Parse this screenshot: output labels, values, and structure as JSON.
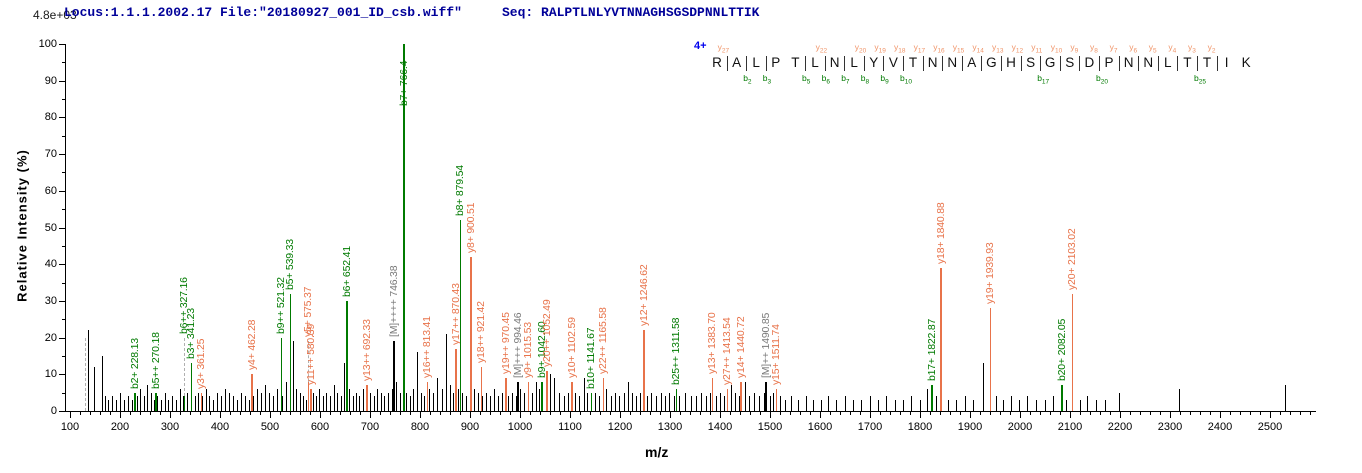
{
  "header": {
    "scale_label": "4.8e+03",
    "locus_text": "Locus:1.1.1.2002.17 File:\"20180927_001_ID_csb.wiff\"",
    "seq_label": "Seq:",
    "sequence": "RALPTLNLYVTNNAGHSGSDPNNLTTIK"
  },
  "fragment_diagram": {
    "charge_label": "4+",
    "residues": [
      "R",
      "A",
      "L",
      "P",
      "T",
      "L",
      "N",
      "L",
      "Y",
      "V",
      "T",
      "N",
      "N",
      "A",
      "G",
      "H",
      "S",
      "G",
      "S",
      "D",
      "P",
      "N",
      "N",
      "L",
      "T",
      "T",
      "I",
      "K"
    ],
    "y_ions": [
      {
        "gap": 1,
        "label": "y27"
      },
      {
        "gap": 6,
        "label": "y22"
      },
      {
        "gap": 8,
        "label": "y20"
      },
      {
        "gap": 9,
        "label": "y19"
      },
      {
        "gap": 10,
        "label": "y18"
      },
      {
        "gap": 11,
        "label": "y17"
      },
      {
        "gap": 12,
        "label": "y16"
      },
      {
        "gap": 13,
        "label": "y15"
      },
      {
        "gap": 14,
        "label": "y14"
      },
      {
        "gap": 15,
        "label": "y13"
      },
      {
        "gap": 16,
        "label": "y12"
      },
      {
        "gap": 17,
        "label": "y11"
      },
      {
        "gap": 18,
        "label": "y10"
      },
      {
        "gap": 19,
        "label": "y9"
      },
      {
        "gap": 20,
        "label": "y8"
      },
      {
        "gap": 21,
        "label": "y7"
      },
      {
        "gap": 22,
        "label": "y6"
      },
      {
        "gap": 23,
        "label": "y5"
      },
      {
        "gap": 24,
        "label": "y4"
      },
      {
        "gap": 25,
        "label": "y3"
      },
      {
        "gap": 26,
        "label": "y2"
      }
    ],
    "b_ions": [
      {
        "gap": 2,
        "label": "b2"
      },
      {
        "gap": 3,
        "label": "b3"
      },
      {
        "gap": 5,
        "label": "b5"
      },
      {
        "gap": 6,
        "label": "b6"
      },
      {
        "gap": 7,
        "label": "b7"
      },
      {
        "gap": 8,
        "label": "b8"
      },
      {
        "gap": 9,
        "label": "b9"
      },
      {
        "gap": 10,
        "label": "b10"
      },
      {
        "gap": 17,
        "label": "b17"
      },
      {
        "gap": 20,
        "label": "b20"
      },
      {
        "gap": 25,
        "label": "b25"
      }
    ]
  },
  "chart_data": {
    "type": "bar",
    "subtype": "ms2-mass-spectrum",
    "title": "Locus:1.1.1.2002.17 File:\"20180927_001_ID_csb.wiff\" Seq: RALPTLNLYVTNNAGHSGSDPNNLTTIK",
    "xlabel": "m/z",
    "ylabel": "Relative  Intensity  (%)",
    "intensity_scale_label": "4.8e+03",
    "x_axis": {
      "min": 90,
      "max": 2590,
      "major_tick_step": 100,
      "minor_tick_step": 20,
      "first_label": 100,
      "last_label": 2500
    },
    "y_axis": {
      "min": 0,
      "max": 100,
      "major_tick_step": 10,
      "minor_tick_step": 5
    },
    "labeled_peaks": [
      {
        "label": "b2+ 228.13",
        "mz": 228.13,
        "pct": 5,
        "ion": "b"
      },
      {
        "label": "b5++ 270.18",
        "mz": 270.18,
        "pct": 5,
        "ion": "b"
      },
      {
        "label": "b6++ 327.16",
        "mz": 327.16,
        "pct": 4,
        "dashed_to": 20,
        "ion": "b"
      },
      {
        "label": "b3+ 341.23",
        "mz": 341.23,
        "pct": 13,
        "ion": "b"
      },
      {
        "label": "y3+ 361.25",
        "mz": 361.25,
        "pct": 5,
        "ion": "y"
      },
      {
        "label": "y4+ 462.28",
        "mz": 462.28,
        "pct": 10,
        "ion": "y"
      },
      {
        "label": "b9++ 521.32",
        "mz": 521.32,
        "pct": 20,
        "ion": "b"
      },
      {
        "label": "b5+ 539.33",
        "mz": 539.33,
        "pct": 32,
        "ion": "b"
      },
      {
        "label": "y5+ 575.37",
        "mz": 575.37,
        "pct": 8,
        "dashed_to": 19,
        "ion": "y"
      },
      {
        "label": "y11++ 580.39",
        "mz": 580.39,
        "pct": 6,
        "ion": "y"
      },
      {
        "label": "b6+ 652.41",
        "mz": 652.41,
        "pct": 30,
        "ion": "b"
      },
      {
        "label": "y13++ 692.33",
        "mz": 692.33,
        "pct": 7,
        "ion": "y"
      },
      {
        "label": "[M]++++ 746.38",
        "mz": 746.38,
        "pct": 19,
        "ion": "M"
      },
      {
        "label": "b7+ 766.4",
        "mz": 766.4,
        "pct": 100,
        "ion": "b"
      },
      {
        "label": "y16++ 813.41",
        "mz": 813.41,
        "pct": 8,
        "ion": "y"
      },
      {
        "label": "y17++ 870.43",
        "mz": 870.43,
        "pct": 17,
        "ion": "y"
      },
      {
        "label": "b8+ 879.54",
        "mz": 879.54,
        "pct": 52,
        "ion": "b"
      },
      {
        "label": "y8+ 900.51",
        "mz": 900.51,
        "pct": 42,
        "ion": "y"
      },
      {
        "label": "y18++ 921.42",
        "mz": 921.42,
        "pct": 12,
        "ion": "y"
      },
      {
        "label": "y19++ 970.45",
        "mz": 970.45,
        "pct": 9,
        "ion": "y"
      },
      {
        "label": "[M]+++ 994.46",
        "mz": 994.46,
        "pct": 8,
        "ion": "M"
      },
      {
        "label": "y9+ 1015.53",
        "mz": 1015.53,
        "pct": 8,
        "ion": "y"
      },
      {
        "label": "b9+ 1042.60",
        "mz": 1042.6,
        "pct": 8,
        "ion": "b"
      },
      {
        "label": "y20++ 1052.49",
        "mz": 1052.49,
        "pct": 11,
        "ion": "y"
      },
      {
        "label": "y10+ 1102.59",
        "mz": 1102.59,
        "pct": 8,
        "ion": "y"
      },
      {
        "label": "b10+ 1141.67",
        "mz": 1141.67,
        "pct": 5,
        "ion": "b"
      },
      {
        "label": "y22++ 1165.58",
        "mz": 1165.58,
        "pct": 9,
        "ion": "y"
      },
      {
        "label": "y12+ 1246.62",
        "mz": 1246.62,
        "pct": 22,
        "ion": "y"
      },
      {
        "label": "b25++ 1311.58",
        "mz": 1311.58,
        "pct": 6,
        "ion": "b"
      },
      {
        "label": "y13+ 1383.70",
        "mz": 1383.7,
        "pct": 9,
        "ion": "y"
      },
      {
        "label": "y27++ 1413.54",
        "mz": 1413.54,
        "pct": 6,
        "ion": "y"
      },
      {
        "label": "y14+ 1440.72",
        "mz": 1440.72,
        "pct": 8,
        "ion": "y"
      },
      {
        "label": "[M]++ 1490.85",
        "mz": 1490.85,
        "pct": 8,
        "ion": "M"
      },
      {
        "label": "y15+ 1511.74",
        "mz": 1511.74,
        "pct": 6,
        "ion": "y"
      },
      {
        "label": "b17+ 1822.87",
        "mz": 1822.87,
        "pct": 7,
        "ion": "b"
      },
      {
        "label": "y18+ 1840.88",
        "mz": 1840.88,
        "pct": 39,
        "ion": "y"
      },
      {
        "label": "y19+ 1939.93",
        "mz": 1939.93,
        "pct": 28,
        "ion": "y"
      },
      {
        "label": "b20+ 2082.05",
        "mz": 2082.05,
        "pct": 7,
        "ion": "b"
      },
      {
        "label": "y20+ 2103.02",
        "mz": 2103.02,
        "pct": 32,
        "ion": "y"
      }
    ],
    "unlabeled_dashed_peaks": [
      {
        "mz": 129,
        "pct": 0,
        "dashed_to": 20
      }
    ],
    "noise_peaks": [
      [
        136,
        22
      ],
      [
        147,
        12
      ],
      [
        163,
        15
      ],
      [
        170,
        4
      ],
      [
        176,
        3
      ],
      [
        184,
        4
      ],
      [
        192,
        3
      ],
      [
        200,
        5
      ],
      [
        208,
        3
      ],
      [
        216,
        4
      ],
      [
        224,
        3
      ],
      [
        233,
        4
      ],
      [
        240,
        6
      ],
      [
        247,
        4
      ],
      [
        254,
        7
      ],
      [
        261,
        5
      ],
      [
        267,
        3
      ],
      [
        274,
        4
      ],
      [
        281,
        3
      ],
      [
        289,
        5
      ],
      [
        296,
        3
      ],
      [
        303,
        4
      ],
      [
        312,
        3
      ],
      [
        319,
        6
      ],
      [
        326,
        4
      ],
      [
        334,
        5
      ],
      [
        342,
        3
      ],
      [
        349,
        4
      ],
      [
        356,
        5
      ],
      [
        364,
        4
      ],
      [
        371,
        6
      ],
      [
        378,
        4
      ],
      [
        386,
        3
      ],
      [
        394,
        5
      ],
      [
        402,
        4
      ],
      [
        410,
        6
      ],
      [
        418,
        5
      ],
      [
        426,
        4
      ],
      [
        434,
        3
      ],
      [
        442,
        5
      ],
      [
        450,
        4
      ],
      [
        458,
        3
      ],
      [
        466,
        4
      ],
      [
        474,
        6
      ],
      [
        482,
        5
      ],
      [
        490,
        7
      ],
      [
        498,
        5
      ],
      [
        506,
        4
      ],
      [
        514,
        6
      ],
      [
        524,
        4
      ],
      [
        531,
        8
      ],
      [
        545,
        19
      ],
      [
        552,
        6
      ],
      [
        559,
        5
      ],
      [
        566,
        4
      ],
      [
        572,
        3
      ],
      [
        585,
        5
      ],
      [
        591,
        4
      ],
      [
        598,
        6
      ],
      [
        605,
        4
      ],
      [
        612,
        5
      ],
      [
        619,
        4
      ],
      [
        627,
        7
      ],
      [
        634,
        5
      ],
      [
        641,
        4
      ],
      [
        648,
        13
      ],
      [
        658,
        6
      ],
      [
        665,
        4
      ],
      [
        671,
        5
      ],
      [
        678,
        4
      ],
      [
        685,
        6
      ],
      [
        693,
        4
      ],
      [
        700,
        5
      ],
      [
        707,
        4
      ],
      [
        714,
        6
      ],
      [
        721,
        5
      ],
      [
        728,
        4
      ],
      [
        736,
        5
      ],
      [
        743,
        6
      ],
      [
        752,
        8
      ],
      [
        759,
        5
      ],
      [
        772,
        5
      ],
      [
        779,
        4
      ],
      [
        786,
        6
      ],
      [
        794,
        16
      ],
      [
        801,
        5
      ],
      [
        808,
        4
      ],
      [
        818,
        6
      ],
      [
        826,
        5
      ],
      [
        834,
        9
      ],
      [
        843,
        6
      ],
      [
        852,
        21
      ],
      [
        860,
        7
      ],
      [
        866,
        5
      ],
      [
        875,
        6
      ],
      [
        884,
        5
      ],
      [
        891,
        4
      ],
      [
        908,
        6
      ],
      [
        915,
        5
      ],
      [
        924,
        4
      ],
      [
        932,
        5
      ],
      [
        940,
        4
      ],
      [
        948,
        6
      ],
      [
        956,
        4
      ],
      [
        963,
        5
      ],
      [
        976,
        4
      ],
      [
        984,
        5
      ],
      [
        991,
        4
      ],
      [
        1000,
        6
      ],
      [
        1008,
        5
      ],
      [
        1023,
        5
      ],
      [
        1031,
        8
      ],
      [
        1038,
        6
      ],
      [
        1060,
        10
      ],
      [
        1068,
        9
      ],
      [
        1077,
        5
      ],
      [
        1087,
        4
      ],
      [
        1095,
        5
      ],
      [
        1110,
        5
      ],
      [
        1118,
        4
      ],
      [
        1127,
        9
      ],
      [
        1134,
        5
      ],
      [
        1150,
        5
      ],
      [
        1158,
        4
      ],
      [
        1172,
        6
      ],
      [
        1181,
        4
      ],
      [
        1190,
        5
      ],
      [
        1198,
        4
      ],
      [
        1207,
        5
      ],
      [
        1216,
        8
      ],
      [
        1223,
        5
      ],
      [
        1232,
        4
      ],
      [
        1240,
        5
      ],
      [
        1254,
        4
      ],
      [
        1262,
        5
      ],
      [
        1271,
        4
      ],
      [
        1281,
        5
      ],
      [
        1289,
        4
      ],
      [
        1298,
        5
      ],
      [
        1307,
        4
      ],
      [
        1318,
        4
      ],
      [
        1330,
        5
      ],
      [
        1341,
        4
      ],
      [
        1352,
        4
      ],
      [
        1362,
        5
      ],
      [
        1371,
        4
      ],
      [
        1379,
        5
      ],
      [
        1391,
        4
      ],
      [
        1399,
        5
      ],
      [
        1407,
        4
      ],
      [
        1421,
        7
      ],
      [
        1429,
        5
      ],
      [
        1437,
        4
      ],
      [
        1449,
        8
      ],
      [
        1457,
        4
      ],
      [
        1467,
        5
      ],
      [
        1477,
        4
      ],
      [
        1487,
        5
      ],
      [
        1499,
        4
      ],
      [
        1506,
        5
      ],
      [
        1519,
        4
      ],
      [
        1529,
        3
      ],
      [
        1541,
        4
      ],
      [
        1556,
        3
      ],
      [
        1571,
        4
      ],
      [
        1586,
        3
      ],
      [
        1601,
        3
      ],
      [
        1616,
        4
      ],
      [
        1631,
        3
      ],
      [
        1649,
        4
      ],
      [
        1666,
        3
      ],
      [
        1681,
        3
      ],
      [
        1699,
        4
      ],
      [
        1716,
        3
      ],
      [
        1731,
        4
      ],
      [
        1749,
        3
      ],
      [
        1766,
        3
      ],
      [
        1781,
        4
      ],
      [
        1799,
        3
      ],
      [
        1813,
        6
      ],
      [
        1831,
        4
      ],
      [
        1856,
        3
      ],
      [
        1871,
        3
      ],
      [
        1889,
        4
      ],
      [
        1906,
        3
      ],
      [
        1926,
        13
      ],
      [
        1951,
        4
      ],
      [
        1966,
        3
      ],
      [
        1981,
        4
      ],
      [
        1997,
        3
      ],
      [
        2013,
        4
      ],
      [
        2031,
        3
      ],
      [
        2049,
        3
      ],
      [
        2066,
        4
      ],
      [
        2091,
        3
      ],
      [
        2119,
        3
      ],
      [
        2133,
        4
      ],
      [
        2151,
        3
      ],
      [
        2169,
        3
      ],
      [
        2197,
        5
      ],
      [
        2318,
        6
      ],
      [
        2530,
        7
      ]
    ]
  },
  "colors": {
    "b_ion": "#007a00",
    "y_ion": "#e8734a",
    "y_ion_light": "#f09468",
    "precursor": "#7a7a7a",
    "peak": "#000000",
    "dashed": "#b0b0b0",
    "header": "#000099",
    "charge": "#0000ee",
    "axis": "#000000"
  }
}
